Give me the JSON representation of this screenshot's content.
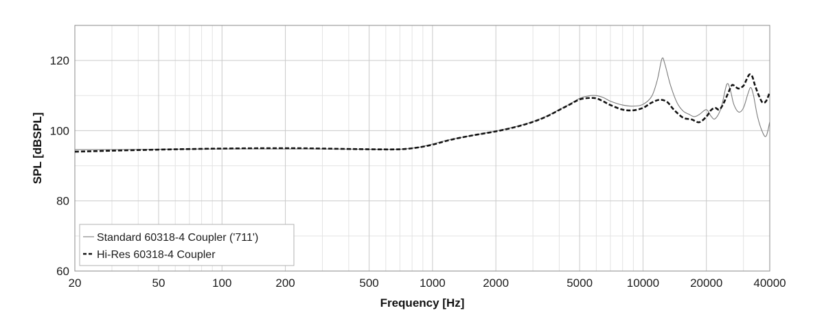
{
  "chart_data": {
    "type": "line",
    "xlabel": "Frequency [Hz]",
    "ylabel": "SPL [dBSPL]",
    "xscale": "log",
    "xlim": [
      20,
      40000
    ],
    "ylim": [
      60,
      130
    ],
    "xticks": [
      20,
      50,
      100,
      200,
      500,
      1000,
      2000,
      5000,
      10000,
      20000,
      40000
    ],
    "xtick_labels": [
      "20",
      "50",
      "100",
      "200",
      "500",
      "1000",
      "2000",
      "5000",
      "10000",
      "20000",
      "40000"
    ],
    "yticks": [
      60,
      80,
      100,
      120
    ],
    "ytick_labels": [
      "60",
      "80",
      "100",
      "120"
    ],
    "grid": true,
    "legend_position": "bottom-left",
    "series": [
      {
        "name": "Standard 60318-4 Coupler ('711')",
        "style": "solid-thin",
        "color": "#7a7a7a",
        "points": [
          [
            20,
            94.6
          ],
          [
            30,
            94.6
          ],
          [
            50,
            94.7
          ],
          [
            100,
            94.8
          ],
          [
            200,
            94.8
          ],
          [
            300,
            94.8
          ],
          [
            500,
            94.7
          ],
          [
            700,
            94.7
          ],
          [
            850,
            95.2
          ],
          [
            1000,
            96.2
          ],
          [
            1200,
            97.4
          ],
          [
            1500,
            98.5
          ],
          [
            2000,
            99.9
          ],
          [
            2500,
            101.2
          ],
          [
            3000,
            102.6
          ],
          [
            3500,
            104.2
          ],
          [
            4000,
            106.0
          ],
          [
            4500,
            107.6
          ],
          [
            5000,
            109.2
          ],
          [
            5500,
            109.9
          ],
          [
            6000,
            110.0
          ],
          [
            6500,
            109.4
          ],
          [
            7000,
            108.4
          ],
          [
            8000,
            107.3
          ],
          [
            9000,
            107.0
          ],
          [
            10000,
            107.5
          ],
          [
            11000,
            109.8
          ],
          [
            11700,
            114.5
          ],
          [
            12300,
            120.5
          ],
          [
            12700,
            119.0
          ],
          [
            13500,
            113.0
          ],
          [
            14500,
            108.0
          ],
          [
            15500,
            105.6
          ],
          [
            16500,
            104.7
          ],
          [
            17500,
            104.0
          ],
          [
            18500,
            104.6
          ],
          [
            20000,
            106.0
          ],
          [
            21000,
            104.2
          ],
          [
            22000,
            103.4
          ],
          [
            23500,
            106.5
          ],
          [
            25000,
            113.2
          ],
          [
            26000,
            111.5
          ],
          [
            27000,
            107.5
          ],
          [
            28500,
            105.3
          ],
          [
            30000,
            106.5
          ],
          [
            31500,
            110.5
          ],
          [
            32500,
            112.3
          ],
          [
            33500,
            110.0
          ],
          [
            35000,
            104.0
          ],
          [
            37000,
            99.5
          ],
          [
            38500,
            98.5
          ],
          [
            40000,
            102.5
          ]
        ]
      },
      {
        "name": "Hi-Res 60318-4 Coupler",
        "style": "dashed-thick",
        "color": "#111111",
        "points": [
          [
            20,
            94.0
          ],
          [
            30,
            94.3
          ],
          [
            50,
            94.6
          ],
          [
            100,
            94.9
          ],
          [
            200,
            95.0
          ],
          [
            300,
            94.9
          ],
          [
            500,
            94.7
          ],
          [
            700,
            94.7
          ],
          [
            850,
            95.2
          ],
          [
            1000,
            96.0
          ],
          [
            1200,
            97.3
          ],
          [
            1500,
            98.5
          ],
          [
            2000,
            99.8
          ],
          [
            2500,
            101.1
          ],
          [
            3000,
            102.5
          ],
          [
            3500,
            104.1
          ],
          [
            4000,
            105.9
          ],
          [
            4500,
            107.5
          ],
          [
            5000,
            108.9
          ],
          [
            5500,
            109.3
          ],
          [
            6000,
            109.2
          ],
          [
            6500,
            108.3
          ],
          [
            7000,
            107.3
          ],
          [
            8000,
            106.0
          ],
          [
            9000,
            105.8
          ],
          [
            10000,
            106.5
          ],
          [
            11000,
            108.0
          ],
          [
            12000,
            108.8
          ],
          [
            13000,
            108.2
          ],
          [
            14000,
            106.0
          ],
          [
            15500,
            103.7
          ],
          [
            17000,
            103.2
          ],
          [
            18500,
            102.4
          ],
          [
            20000,
            104.0
          ],
          [
            21000,
            105.8
          ],
          [
            22000,
            106.5
          ],
          [
            23000,
            106.0
          ],
          [
            24000,
            107.5
          ],
          [
            25500,
            111.0
          ],
          [
            26500,
            113.0
          ],
          [
            27500,
            112.5
          ],
          [
            28500,
            112.0
          ],
          [
            30000,
            112.8
          ],
          [
            31000,
            114.5
          ],
          [
            32000,
            116.0
          ],
          [
            33000,
            115.5
          ],
          [
            34000,
            113.0
          ],
          [
            35500,
            110.0
          ],
          [
            37000,
            108.0
          ],
          [
            38500,
            108.5
          ],
          [
            40000,
            111.0
          ]
        ]
      }
    ]
  }
}
